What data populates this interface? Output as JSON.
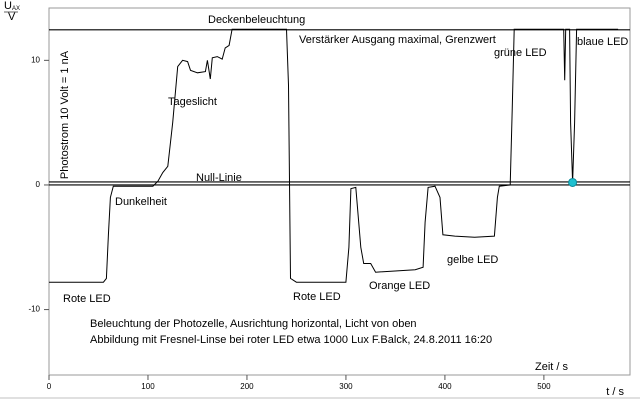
{
  "chart_data": {
    "type": "line",
    "y_label": {
      "symbol": "U",
      "subscript": "AX",
      "unit": "V"
    },
    "x_label": "t / s",
    "x": [
      0,
      55,
      58,
      60,
      62,
      65,
      105,
      110,
      115,
      120,
      125,
      130,
      135,
      140,
      143,
      150,
      158,
      160,
      163,
      165,
      170,
      175,
      178,
      182,
      185,
      240,
      242,
      244,
      250,
      300,
      303,
      305,
      310,
      315,
      318,
      325,
      330,
      370,
      378,
      380,
      383,
      390,
      395,
      398,
      410,
      430,
      450,
      453,
      455,
      466,
      468,
      470,
      520,
      521,
      522,
      526,
      527,
      529,
      531,
      533,
      575
    ],
    "series": [
      {
        "color": "#000000",
        "values": [
          -7.8,
          -7.8,
          -7.5,
          -4,
          -1,
          -0.1,
          -0.1,
          0.3,
          1,
          1.5,
          5,
          9.5,
          10,
          9.9,
          9.2,
          9,
          9.1,
          10,
          8.5,
          10.2,
          10.3,
          10.1,
          11,
          11.2,
          12.5,
          12.5,
          8,
          -7.5,
          -7.8,
          -7.8,
          -5,
          -0.3,
          -0.2,
          -5,
          -6.3,
          -6.3,
          -7.0,
          -6.8,
          -6.6,
          -3,
          -0.2,
          -0.1,
          -1,
          -4,
          -4.1,
          -4.2,
          -4.1,
          -1,
          -0.1,
          0,
          6,
          12.5,
          12.5,
          8.4,
          12.5,
          12.5,
          5,
          0.2,
          5,
          12.5,
          12.5
        ]
      }
    ],
    "marker": {
      "x": 529,
      "y": 0.2,
      "color": "#1fc0d0"
    },
    "reference_lines": [
      12.45,
      0
    ],
    "xlim": [
      0,
      587
    ],
    "ylim": [
      -15.25,
      14.2
    ],
    "xticks": [
      0,
      100,
      200,
      300,
      400,
      500
    ],
    "yticks": [
      -10,
      0,
      10
    ],
    "annotations": [
      "Deckenbeleuchtung",
      "Verstärker Ausgang maximal, Grenzwert",
      "grüne LED",
      "blaue LED",
      "Tageslicht",
      "Null-Linie",
      "Dunkelheit",
      "gelbe LED",
      "Rote LED",
      "Rote LED",
      "Orange LED",
      "Beleuchtung der Photozelle, Ausrichtung horizontal, Licht von oben",
      "Abbildung mit Fresnel-Linse bei roter LED etwa 1000 Lux  F.Balck, 24.8.2011 16:20",
      "Zeit / s",
      "Photostrom   10 Volt = 1 nA"
    ]
  }
}
